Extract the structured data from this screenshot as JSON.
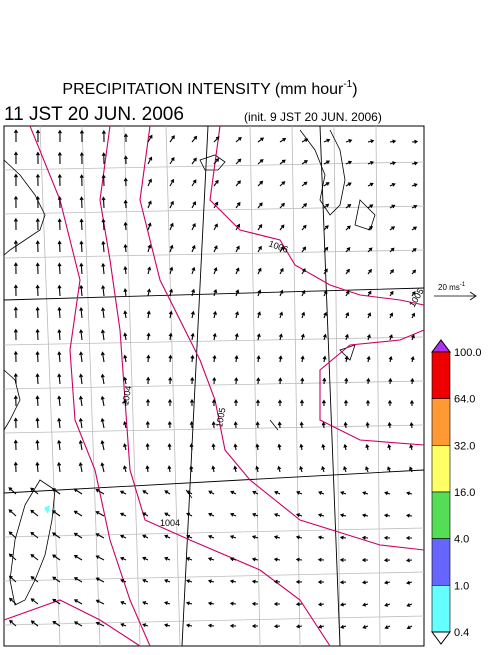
{
  "header": {
    "title": "PRECIPITATION INTENSITY (mm hour",
    "title_sup": "-1",
    "title_end": ")",
    "time": "11 JST 20 JUN. 2006",
    "init": "(init. 9 JST 20 JUN. 2006)"
  },
  "scale": {
    "label": "20 ms",
    "sup": "-1"
  },
  "colorbar": {
    "labels": [
      "100.0",
      "64.0",
      "32.0",
      "16.0",
      "4.0",
      "1.0",
      "0.4"
    ],
    "colors": [
      "#ee0000",
      "#ff9933",
      "#ffff66",
      "#55dd55",
      "#6666ff",
      "#66ffff"
    ],
    "top_color": "#aa33ee"
  },
  "contour_labels": [
    "1006",
    "1005",
    "1004",
    "1005",
    "1004"
  ]
}
